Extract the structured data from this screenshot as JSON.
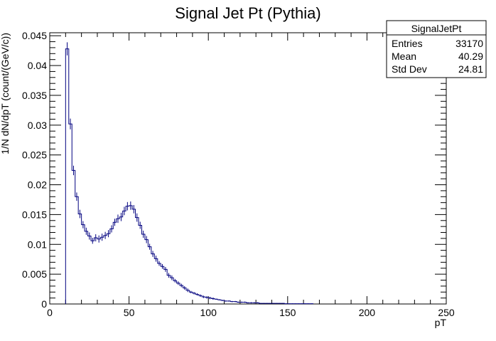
{
  "chart_data": {
    "type": "histogram",
    "title": "Signal Jet Pt (Pythia)",
    "xlabel": "pT",
    "ylabel": "1/N dN/dpT (count/(GeV/c))",
    "xlim": [
      0,
      250
    ],
    "ylim": [
      0,
      0.0455
    ],
    "x_ticks": [
      "0",
      "50",
      "100",
      "150",
      "200",
      "250"
    ],
    "y_ticks": [
      "0",
      "0.005",
      "0.01",
      "0.015",
      "0.02",
      "0.025",
      "0.03",
      "0.035",
      "0.04",
      "0.045"
    ],
    "line_color": "#00007f",
    "bin_width": 2,
    "series": [
      {
        "x": [
          10,
          12,
          14,
          16,
          18,
          20,
          22,
          24,
          26,
          28,
          30,
          32,
          34,
          36,
          38,
          40,
          42,
          44,
          46,
          48,
          50,
          52,
          54,
          56,
          58,
          60,
          62,
          64,
          66,
          68,
          70,
          72,
          74,
          76,
          78,
          80,
          82,
          84,
          86,
          88,
          90,
          92,
          94,
          96,
          98,
          100,
          102,
          104,
          106,
          108,
          110,
          112,
          114,
          116,
          118,
          120,
          122,
          124,
          126,
          128,
          130,
          132,
          134,
          136,
          138,
          140,
          142,
          144,
          146,
          148,
          150,
          152,
          154,
          156,
          158,
          160,
          162,
          164
        ],
        "values": [
          0.0428,
          0.0302,
          0.0224,
          0.018,
          0.0151,
          0.0133,
          0.0122,
          0.0114,
          0.0106,
          0.0111,
          0.0109,
          0.0112,
          0.0115,
          0.0118,
          0.0126,
          0.0137,
          0.0143,
          0.0146,
          0.0156,
          0.0164,
          0.0165,
          0.0159,
          0.0145,
          0.0132,
          0.0117,
          0.0108,
          0.0096,
          0.0084,
          0.0076,
          0.0068,
          0.0063,
          0.0058,
          0.0048,
          0.0044,
          0.0039,
          0.0035,
          0.0031,
          0.0027,
          0.0023,
          0.002,
          0.0018,
          0.0016,
          0.0014,
          0.0012,
          0.0011,
          0.001,
          0.0009,
          0.0008,
          0.0007,
          0.0006,
          0.0005,
          0.0005,
          0.0004,
          0.0004,
          0.0003,
          0.0003,
          0.0003,
          0.0002,
          0.0002,
          0.0002,
          0.0002,
          0.0001,
          0.0001,
          0.0001,
          0.0001,
          0.0001,
          0.0001,
          0.0001,
          0.0001,
          5e-05,
          5e-05,
          5e-05,
          5e-05,
          5e-05,
          5e-05,
          5e-05,
          5e-05,
          5e-05
        ],
        "errors": [
          0.0011,
          0.0009,
          0.0008,
          0.0007,
          0.0007,
          0.0006,
          0.0006,
          0.0006,
          0.0005,
          0.0006,
          0.0006,
          0.0006,
          0.0006,
          0.0006,
          0.0006,
          0.0006,
          0.0007,
          0.0007,
          0.0007,
          0.0007,
          0.0007,
          0.0007,
          0.0007,
          0.0006,
          0.0006,
          0.0006,
          0.0005,
          0.0005,
          0.0005,
          0.0004,
          0.0004,
          0.0004,
          0.0004,
          0.0004,
          0.0003,
          0.0003,
          0.0003,
          0.0003,
          0.0003,
          0.0002,
          0.0002,
          0.0002,
          0.0002,
          0.0002,
          0.0002,
          0.0002,
          0.0002,
          0.0001,
          0.0001,
          0.0001,
          0.0001,
          0.0001,
          0.0001,
          0.0001,
          0.0001,
          0.0001,
          0.0001,
          0.0001,
          0.0001,
          0.0001,
          0.0001,
          5e-05,
          5e-05,
          5e-05,
          5e-05,
          5e-05,
          5e-05,
          5e-05,
          5e-05,
          4e-05,
          4e-05,
          4e-05,
          4e-05,
          4e-05,
          4e-05,
          4e-05,
          4e-05,
          4e-05
        ]
      }
    ],
    "stats_box": {
      "name": "SignalJetPt",
      "rows": [
        {
          "label": "Entries",
          "value": "33170"
        },
        {
          "label": "Mean",
          "value": "40.29"
        },
        {
          "label": "Std Dev",
          "value": "24.81"
        }
      ]
    }
  }
}
